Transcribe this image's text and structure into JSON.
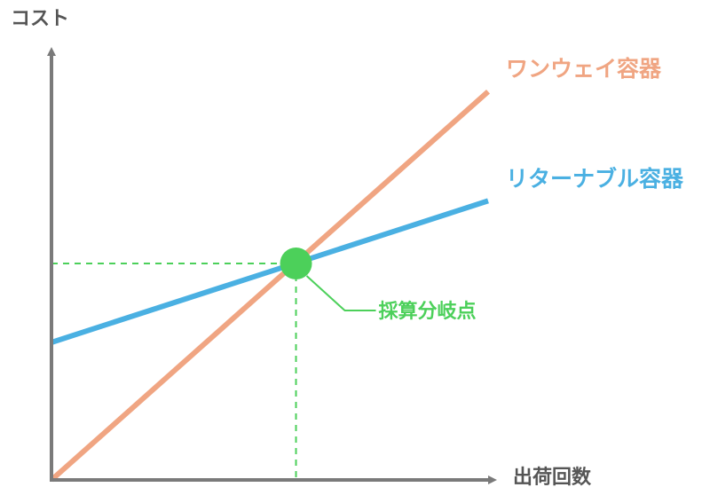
{
  "chart_data": {
    "type": "line",
    "title": "",
    "ylabel": "コスト",
    "xlabel": "出荷回数",
    "xlim": [
      0,
      10
    ],
    "ylim": [
      0,
      10
    ],
    "ticks_shown": false,
    "grid": false,
    "series": [
      {
        "name": "ワンウェイ容器",
        "color": "#f0a582",
        "x": [
          0,
          10
        ],
        "y": [
          0,
          9.6
        ]
      },
      {
        "name": "リターナブル容器",
        "color": "#4ab0e2",
        "x": [
          0,
          10
        ],
        "y": [
          3.4,
          6.9
        ]
      }
    ],
    "annotations": [
      {
        "label": "採算分岐点",
        "color": "#4cd05a",
        "x": 5.6,
        "y": 5.35
      }
    ],
    "colors": {
      "axis": "#7a7a7a",
      "guide": "#4cd05a",
      "axis_text": "#555555"
    }
  }
}
